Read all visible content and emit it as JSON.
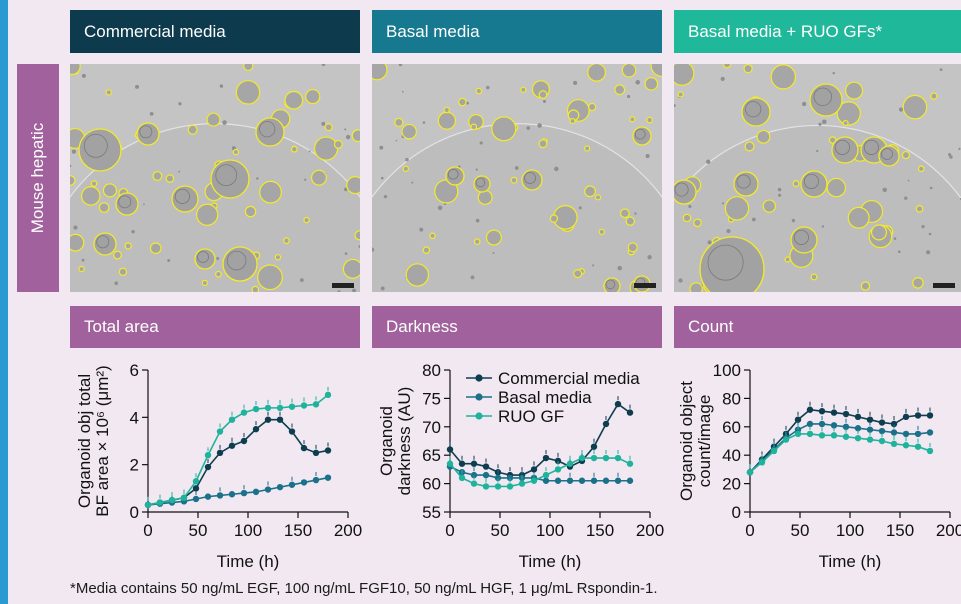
{
  "columns": [
    {
      "header": "Commercial media",
      "color": "#0d3a4c"
    },
    {
      "header": "Basal media",
      "color": "#17798f"
    },
    {
      "header": "Basal media + RUO GFs*",
      "color": "#1fb89a"
    }
  ],
  "row_label": "Mouse hepatic",
  "panels": [
    "Total area",
    "Darkness",
    "Count"
  ],
  "footnote": "*Media contains 50 ng/mL EGF, 100 ng/mL FGF10, 50 ng/mL HGF, 1 μg/mL Rspondin-1.",
  "colors": {
    "commercial": "#0e3d4e",
    "basal": "#1b7189",
    "ruo": "#1fb39b",
    "outline": "#f3ea2a"
  },
  "chart_data": [
    {
      "type": "line",
      "ylabel_line1": "Organoid obj total",
      "ylabel_line2": "BF area × 10⁶ (μm²)",
      "xlabel": "Time (h)",
      "xlim": [
        0,
        200
      ],
      "ylim": [
        0,
        6
      ],
      "xticks": [
        "0",
        "50",
        "100",
        "150",
        "200"
      ],
      "yticks": [
        "0",
        "2",
        "4",
        "6"
      ],
      "legend": false,
      "series": [
        {
          "name": "Commercial media",
          "x": [
            0,
            12,
            24,
            36,
            48,
            60,
            72,
            84,
            96,
            108,
            120,
            132,
            144,
            156,
            168,
            180
          ],
          "y": [
            0.3,
            0.4,
            0.5,
            0.6,
            1.0,
            1.9,
            2.5,
            2.8,
            3.0,
            3.5,
            3.9,
            3.9,
            3.4,
            2.7,
            2.5,
            2.6
          ]
        },
        {
          "name": "Basal media",
          "x": [
            0,
            12,
            24,
            36,
            48,
            60,
            72,
            84,
            96,
            108,
            120,
            132,
            144,
            156,
            168,
            180
          ],
          "y": [
            0.3,
            0.35,
            0.4,
            0.45,
            0.55,
            0.65,
            0.7,
            0.75,
            0.8,
            0.85,
            0.95,
            1.05,
            1.15,
            1.25,
            1.35,
            1.45
          ]
        },
        {
          "name": "RUO GF",
          "x": [
            0,
            12,
            24,
            36,
            48,
            60,
            72,
            84,
            96,
            108,
            120,
            132,
            144,
            156,
            168,
            180
          ],
          "y": [
            0.3,
            0.4,
            0.5,
            0.6,
            1.3,
            2.4,
            3.4,
            3.9,
            4.2,
            4.35,
            4.4,
            4.4,
            4.45,
            4.5,
            4.55,
            4.95
          ]
        }
      ]
    },
    {
      "type": "line",
      "ylabel_line1": "Organoid",
      "ylabel_line2": "darkness (AU)",
      "xlabel": "Time (h)",
      "xlim": [
        0,
        200
      ],
      "ylim": [
        55,
        80
      ],
      "xticks": [
        "0",
        "50",
        "100",
        "150",
        "200"
      ],
      "yticks": [
        "55",
        "60",
        "65",
        "70",
        "75",
        "80"
      ],
      "legend": true,
      "legend_position": "top-right",
      "series": [
        {
          "name": "Commercial media",
          "x": [
            0,
            12,
            24,
            36,
            48,
            60,
            72,
            84,
            96,
            108,
            120,
            132,
            144,
            156,
            168,
            180
          ],
          "y": [
            66,
            63.5,
            63.5,
            63,
            62,
            61.5,
            61.5,
            62.5,
            64.5,
            64,
            63,
            64,
            66.5,
            70.5,
            74,
            72.5
          ]
        },
        {
          "name": "Basal media",
          "x": [
            0,
            12,
            24,
            36,
            48,
            60,
            72,
            84,
            96,
            108,
            120,
            132,
            144,
            156,
            168,
            180
          ],
          "y": [
            63,
            62,
            61.5,
            61.5,
            61,
            61,
            61,
            61,
            60.5,
            60.5,
            60.5,
            60.5,
            60.5,
            60.5,
            60.5,
            60.5
          ]
        },
        {
          "name": "RUO GF",
          "x": [
            0,
            12,
            24,
            36,
            48,
            60,
            72,
            84,
            96,
            108,
            120,
            132,
            144,
            156,
            168,
            180
          ],
          "y": [
            63.5,
            61,
            60,
            59.5,
            59.5,
            59.5,
            60,
            60.5,
            61.5,
            62.5,
            63.5,
            64.5,
            64.5,
            64.5,
            64.5,
            63.5
          ]
        }
      ]
    },
    {
      "type": "line",
      "ylabel_line1": "Organoid object",
      "ylabel_line2": "count/image",
      "xlabel": "Time (h)",
      "xlim": [
        0,
        200
      ],
      "ylim": [
        0,
        100
      ],
      "xticks": [
        "0",
        "50",
        "100",
        "150",
        "200"
      ],
      "yticks": [
        "0",
        "20",
        "40",
        "60",
        "80",
        "100"
      ],
      "legend": false,
      "series": [
        {
          "name": "Commercial media",
          "x": [
            0,
            12,
            24,
            36,
            48,
            60,
            72,
            84,
            96,
            108,
            120,
            132,
            144,
            156,
            168,
            180
          ],
          "y": [
            28,
            37,
            46,
            55,
            65,
            72,
            71,
            70,
            69,
            67,
            65,
            63,
            62,
            67,
            68,
            68
          ]
        },
        {
          "name": "Basal media",
          "x": [
            0,
            12,
            24,
            36,
            48,
            60,
            72,
            84,
            96,
            108,
            120,
            132,
            144,
            156,
            168,
            180
          ],
          "y": [
            28,
            36,
            44,
            52,
            58,
            62,
            62,
            61,
            60,
            59,
            58,
            57,
            56,
            55,
            55,
            56
          ]
        },
        {
          "name": "RUO GF",
          "x": [
            0,
            12,
            24,
            36,
            48,
            60,
            72,
            84,
            96,
            108,
            120,
            132,
            144,
            156,
            168,
            180
          ],
          "y": [
            28,
            35,
            43,
            51,
            55,
            55,
            54,
            54,
            53,
            52,
            51,
            50,
            48,
            47,
            46,
            43
          ]
        }
      ]
    }
  ]
}
